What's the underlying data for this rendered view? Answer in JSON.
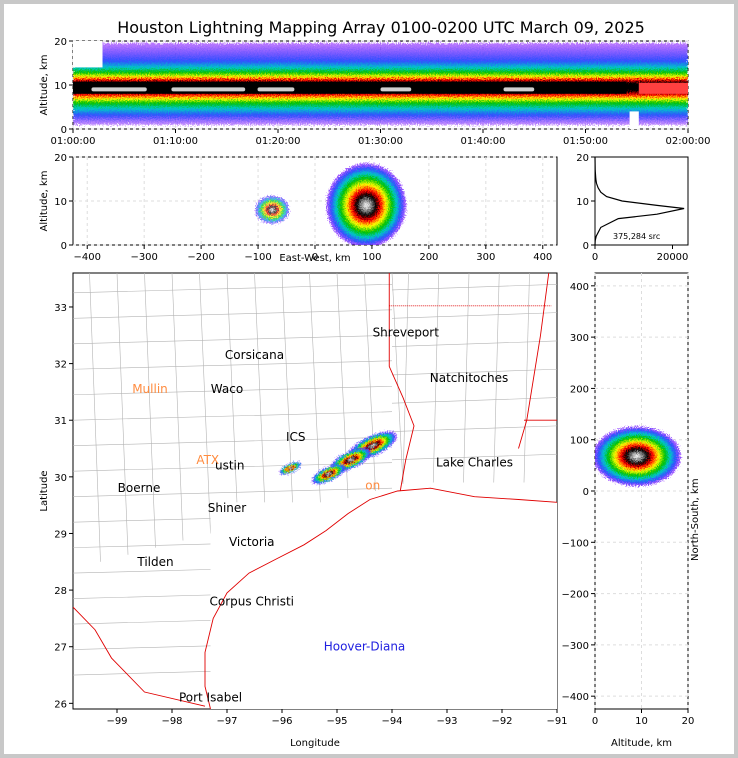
{
  "title": "Houston Lightning Mapping Array 0100-0200 UTC March 09, 2025",
  "colors": {
    "frame_border": "#c8c8c8",
    "density_scale": [
      "#8000ff",
      "#3050ff",
      "#00c8c8",
      "#00c000",
      "#ffff00",
      "#ff0000",
      "#000000",
      "#ffffff"
    ],
    "state_border": "#e00000",
    "county_line": "#b4b4b4",
    "histogram_line": "#000000"
  },
  "chart_data": [
    {
      "id": "time-altitude",
      "type": "heatmap",
      "ylabel": "Altitude, km",
      "xlabel": "",
      "xlim": [
        "01:00:00",
        "02:00:00"
      ],
      "xticks": [
        "01:00:00",
        "01:10:00",
        "01:20:00",
        "01:30:00",
        "01:40:00",
        "01:50:00",
        "02:00:00"
      ],
      "ylim": [
        0,
        20
      ],
      "yticks": [
        "0",
        "10",
        "20"
      ],
      "core_altitude_km": 9,
      "core_depth_km": [
        6,
        11
      ],
      "grid": true
    },
    {
      "id": "east-west-altitude",
      "type": "heatmap",
      "xlabel": "East-West, km",
      "ylabel": "Altitude, km",
      "xlim": [
        -425,
        425
      ],
      "xticks": [
        "−400",
        "−300",
        "−200",
        "−100",
        "0",
        "100",
        "200",
        "300",
        "400"
      ],
      "ylim": [
        0,
        20
      ],
      "yticks": [
        "0",
        "10",
        "20"
      ],
      "clusters": [
        {
          "x_range": [
            -115,
            -55
          ],
          "peak_x": -75,
          "peak_altitude": 8
        },
        {
          "x_range": [
            0,
            140
          ],
          "peak_x": 90,
          "peak_altitude": 9
        }
      ],
      "grid": true
    },
    {
      "id": "altitude-histogram",
      "type": "line",
      "xlim": [
        0,
        24000
      ],
      "xticks": [
        "0",
        "20000"
      ],
      "ylim": [
        0,
        20
      ],
      "yticks": [
        "0",
        "10",
        "20"
      ],
      "annotation": "375,284 src",
      "x": [
        0,
        50,
        300,
        1500,
        6000,
        16000,
        23000,
        16000,
        7000,
        3000,
        1500,
        800,
        400,
        200,
        60,
        0
      ],
      "y": [
        0,
        1,
        2,
        4,
        6,
        7,
        8.3,
        9,
        10,
        11,
        12,
        13,
        14,
        15,
        17,
        20
      ]
    },
    {
      "id": "plan-view",
      "type": "scatter",
      "xlabel": "Longitude",
      "ylabel": "Latitude",
      "xlim": [
        -99.8,
        -91
      ],
      "xticks": [
        "−99",
        "−98",
        "−97",
        "−96",
        "−95",
        "−94",
        "−93",
        "−92",
        "−91"
      ],
      "ylim": [
        25.9,
        33.6
      ],
      "yticks": [
        "26",
        "27",
        "28",
        "29",
        "30",
        "31",
        "32",
        "33"
      ],
      "cities": [
        {
          "name": "Shreveport",
          "lon": -93.75,
          "lat": 32.55,
          "color": "#000000"
        },
        {
          "name": "Corsicana",
          "lon": -96.5,
          "lat": 32.15,
          "color": "#000000"
        },
        {
          "name": "Natchitoches",
          "lon": -92.6,
          "lat": 31.75,
          "color": "#000000"
        },
        {
          "name": "Mullin",
          "lon": -98.4,
          "lat": 31.55,
          "color": "#ff8c40"
        },
        {
          "name": "Waco",
          "lon": -97.0,
          "lat": 31.55,
          "color": "#000000"
        },
        {
          "name": "Lake Charles",
          "lon": -92.5,
          "lat": 30.25,
          "color": "#000000"
        },
        {
          "name": "Boerne",
          "lon": -98.6,
          "lat": 29.8,
          "color": "#000000"
        },
        {
          "name": "Shiner",
          "lon": -97.0,
          "lat": 29.45,
          "color": "#000000"
        },
        {
          "name": "Victoria",
          "lon": -96.55,
          "lat": 28.85,
          "color": "#000000"
        },
        {
          "name": "Tilden",
          "lon": -98.3,
          "lat": 28.5,
          "color": "#000000"
        },
        {
          "name": "Corpus Christi",
          "lon": -96.55,
          "lat": 27.8,
          "color": "#000000"
        },
        {
          "name": "Hoover-Diana",
          "lon": -94.5,
          "lat": 27.0,
          "color": "#2020e0"
        },
        {
          "name": "Port Isabel",
          "lon": -97.3,
          "lat": 26.1,
          "color": "#000000"
        }
      ],
      "partial_labels": [
        {
          "text": "ICS",
          "lon": -95.75,
          "lat": 30.7,
          "color": "#000000"
        },
        {
          "text": "ATX",
          "lon": -97.35,
          "lat": 30.3,
          "color": "#ff8c40"
        },
        {
          "text": "ustin",
          "lon": -96.95,
          "lat": 30.2,
          "color": "#000000"
        },
        {
          "text": "on",
          "lon": -94.35,
          "lat": 29.85,
          "color": "#ff8c40"
        }
      ],
      "clusters": [
        {
          "lon": -94.35,
          "lat": 30.55,
          "intensity": 1.0
        },
        {
          "lon": -94.75,
          "lat": 30.3,
          "intensity": 0.85
        },
        {
          "lon": -95.15,
          "lat": 30.05,
          "intensity": 0.7
        },
        {
          "lon": -95.85,
          "lat": 30.15,
          "intensity": 0.45
        }
      ]
    },
    {
      "id": "altitude-north-south",
      "type": "heatmap",
      "xlabel": "Altitude, km",
      "ylabel": "North-South, km",
      "xlim": [
        0,
        20
      ],
      "xticks": [
        "0",
        "10",
        "20"
      ],
      "ylim": [
        -425,
        425
      ],
      "yticks": [
        "−400",
        "−300",
        "−200",
        "−100",
        "0",
        "100",
        "200",
        "300",
        "400"
      ],
      "cluster": {
        "y_range": [
          25,
          110
        ],
        "peak_altitude": 9
      },
      "grid": true
    }
  ]
}
